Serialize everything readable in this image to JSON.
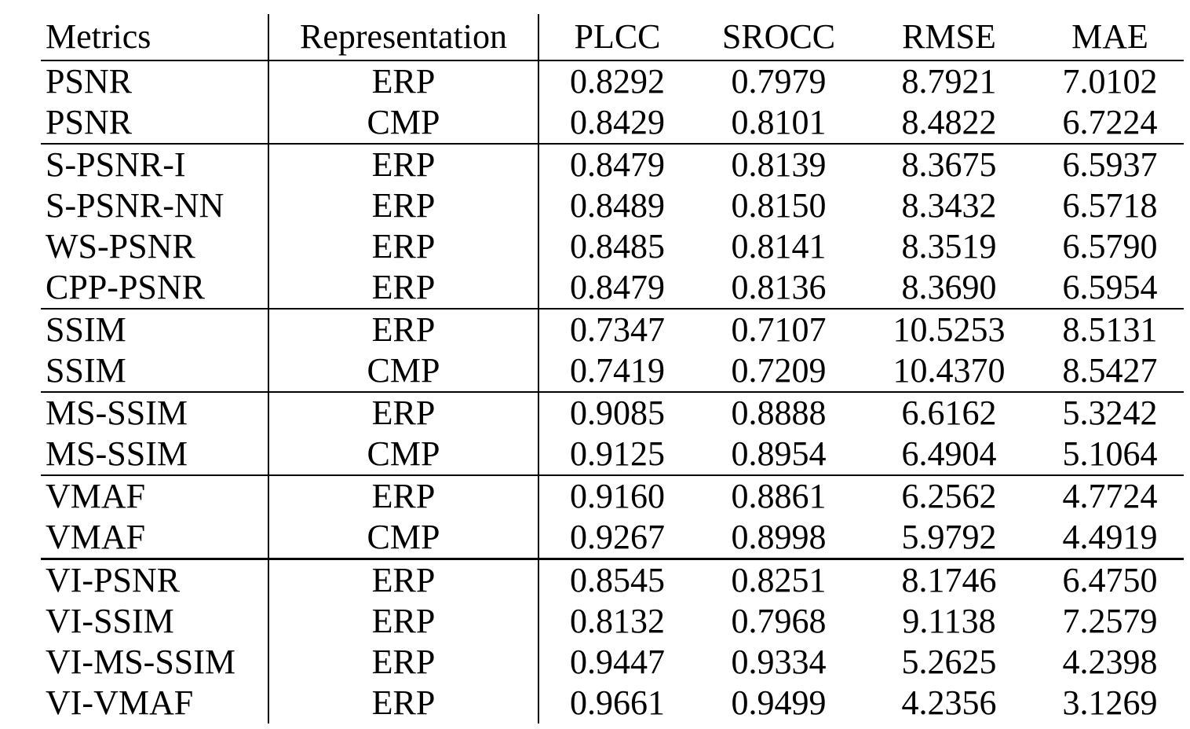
{
  "table": {
    "headers": [
      "Metrics",
      "Representation",
      "PLCC",
      "SROCC",
      "RMSE",
      "MAE"
    ],
    "groups": [
      {
        "rows": [
          {
            "metric": "PSNR",
            "rep": "ERP",
            "plcc": "0.8292",
            "srocc": "0.7979",
            "rmse": "8.7921",
            "mae": "7.0102"
          },
          {
            "metric": "PSNR",
            "rep": "CMP",
            "plcc": "0.8429",
            "srocc": "0.8101",
            "rmse": "8.4822",
            "mae": "6.7224"
          }
        ]
      },
      {
        "rows": [
          {
            "metric": "S-PSNR-I",
            "rep": "ERP",
            "plcc": "0.8479",
            "srocc": "0.8139",
            "rmse": "8.3675",
            "mae": "6.5937"
          },
          {
            "metric": "S-PSNR-NN",
            "rep": "ERP",
            "plcc": "0.8489",
            "srocc": "0.8150",
            "rmse": "8.3432",
            "mae": "6.5718"
          },
          {
            "metric": "WS-PSNR",
            "rep": "ERP",
            "plcc": "0.8485",
            "srocc": "0.8141",
            "rmse": "8.3519",
            "mae": "6.5790"
          },
          {
            "metric": "CPP-PSNR",
            "rep": "ERP",
            "plcc": "0.8479",
            "srocc": "0.8136",
            "rmse": "8.3690",
            "mae": "6.5954"
          }
        ]
      },
      {
        "rows": [
          {
            "metric": "SSIM",
            "rep": "ERP",
            "plcc": "0.7347",
            "srocc": "0.7107",
            "rmse": "10.5253",
            "mae": "8.5131"
          },
          {
            "metric": "SSIM",
            "rep": "CMP",
            "plcc": "0.7419",
            "srocc": "0.7209",
            "rmse": "10.4370",
            "mae": "8.5427"
          }
        ]
      },
      {
        "rows": [
          {
            "metric": "MS-SSIM",
            "rep": "ERP",
            "plcc": "0.9085",
            "srocc": "0.8888",
            "rmse": "6.6162",
            "mae": "5.3242"
          },
          {
            "metric": "MS-SSIM",
            "rep": "CMP",
            "plcc": "0.9125",
            "srocc": "0.8954",
            "rmse": "6.4904",
            "mae": "5.1064"
          }
        ]
      },
      {
        "rows": [
          {
            "metric": "VMAF",
            "rep": "ERP",
            "plcc": "0.9160",
            "srocc": "0.8861",
            "rmse": "6.2562",
            "mae": "4.7724"
          },
          {
            "metric": "VMAF",
            "rep": "CMP",
            "plcc": "0.9267",
            "srocc": "0.8998",
            "rmse": "5.9792",
            "mae": "4.4919"
          }
        ]
      },
      {
        "rows": [
          {
            "metric": "VI-PSNR",
            "rep": "ERP",
            "plcc": "0.8545",
            "srocc": "0.8251",
            "rmse": "8.1746",
            "mae": "6.4750"
          },
          {
            "metric": "VI-SSIM",
            "rep": "ERP",
            "plcc": "0.8132",
            "srocc": "0.7968",
            "rmse": "9.1138",
            "mae": "7.2579"
          },
          {
            "metric": "VI-MS-SSIM",
            "rep": "ERP",
            "plcc": "0.9447",
            "srocc": "0.9334",
            "rmse": "5.2625",
            "mae": "4.2398"
          },
          {
            "metric": "VI-VMAF",
            "rep": "ERP",
            "plcc": "0.9661",
            "srocc": "0.9499",
            "rmse": "4.2356",
            "mae": "3.1269",
            "bold_values": true
          }
        ]
      }
    ]
  }
}
